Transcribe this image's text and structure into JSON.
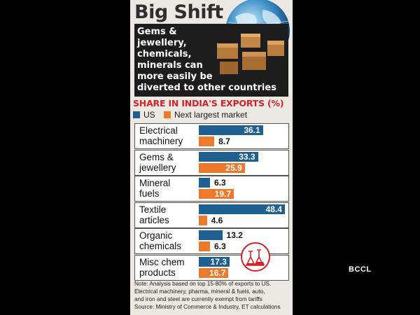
{
  "infographic": {
    "title": "Big Shift",
    "hero_text": [
      "Gems &",
      "jewellery,",
      "chemicals,",
      "minerals can",
      "more easily be",
      "diverted to other countries"
    ],
    "note_lines": [
      "Note: Analysis based on top 15-80% of exports to US.",
      "Electrical machinery, pharma, mineral & fuels, auto,",
      "and iron and steel are currently exempt from tariffs"
    ],
    "source": "Source: Ministry of Commerce & Industry, ET calculations",
    "watermark": "BCCL"
  },
  "chart_data": {
    "type": "bar",
    "orientation": "horizontal",
    "title": "SHARE IN INDIA'S EXPORTS (%)",
    "categories": [
      "Electrical machinery",
      "Gems & jewellery",
      "Mineral fuels",
      "Textile articles",
      "Organic chemicals",
      "Misc chem products"
    ],
    "category_lines": [
      [
        "Electrical",
        "machinery"
      ],
      [
        "Gems &",
        "jewellery"
      ],
      [
        "Mineral",
        "fuels"
      ],
      [
        "Textile",
        "articles"
      ],
      [
        "Organic",
        "chemicals"
      ],
      [
        "Misc chem",
        "products"
      ]
    ],
    "series": [
      {
        "name": "US",
        "color": "#1f6091",
        "values": [
          36.1,
          33.3,
          6.3,
          48.4,
          13.2,
          17.3
        ]
      },
      {
        "name": "Next largest market",
        "color": "#ec7a2d",
        "values": [
          8.7,
          25.9,
          19.7,
          4.6,
          6.3,
          16.7
        ]
      }
    ],
    "xlim": [
      0,
      50
    ],
    "legend_position": "top",
    "grid": false
  }
}
